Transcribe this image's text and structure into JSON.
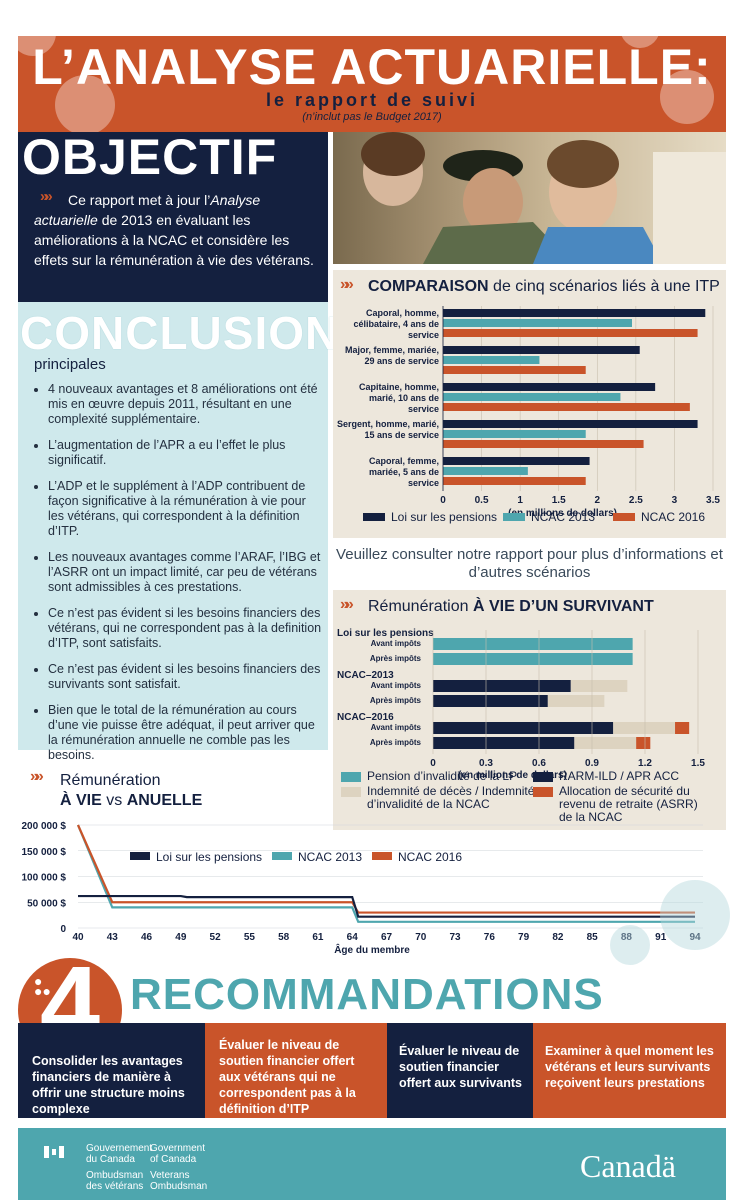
{
  "header": {
    "title": "L’ANALYSE ACTUARIELLE:",
    "subtitle": "le rapport de suivi",
    "note": "(n’inclut pas le Budget 2017)"
  },
  "objectif": {
    "heading": "OBJECTIF",
    "text_a": "Ce rapport met à jour l’",
    "text_em": "Analyse actuarielle",
    "text_b": " de 2013 en évaluant les améliorations à la NCAC et considère les effets sur la rémunération à vie des vétérans."
  },
  "conclusions": {
    "heading": "CONCLUSIONS",
    "subheading": "principales",
    "items": [
      "4 nouveaux avantages et 8 améliorations ont été mis en œuvre depuis 2011, résultant en une complexité supplémentaire.",
      "L’augmentation de l’APR a eu l’effet le plus significatif.",
      "L’ADP et le supplément à l’ADP contribuent de façon significative à la rémunération à vie pour les vétérans, qui correspondent à la définition d’ITP.",
      "Les nouveaux avantages comme l’ARAF, l’IBG et l’ASRR ont un impact limité, car peu de vétérans sont admissibles à ces prestations.",
      "Ce n’est pas évident si les besoins financiers des vétérans, qui ne correspondent pas à la definition d’ITP, sont satisfaits.",
      "Ce n’est pas évident si les besoins financiers des survivants sont satisfait.",
      "Bien que le total de la rémunération au cours d’une vie puisse être adéquat, il peut arriver que la rémunération annuelle ne comble pas les besoins."
    ]
  },
  "colors": {
    "navy": "#14203f",
    "teal": "#4ea6ae",
    "orange": "#c9542a",
    "beige": "#ddd3c0"
  },
  "comparison_title_bold": "COMPARAISON",
  "comparison_title_rest": " de cinq scénarios liés à une ITP",
  "consult_note": "Veuillez consulter notre rapport pour plus d’informations et d’autres scénarios",
  "survivor_title_a": "Rémunération ",
  "survivor_title_b": "À VIE D’UN SURVIVANT",
  "life_title_a": "Rémunération",
  "life_title_b": "À VIE",
  "life_title_c": " vs ",
  "life_title_d": "ANUELLE",
  "chart_data": [
    {
      "type": "bar",
      "orientation": "horizontal",
      "categories": [
        "Caporal, homme, célibataire, 4 ans de service",
        "Major, femme, mariée, 29 ans de service",
        "Capitaine, homme, marié, 10 ans de service",
        "Sergent, homme, marié, 15 ans de service",
        "Caporal, femme, mariée, 5 ans de service"
      ],
      "series": [
        {
          "name": "Loi sur les pensions",
          "color": "#14203f",
          "values": [
            3.4,
            2.55,
            2.75,
            3.3,
            1.9
          ]
        },
        {
          "name": "NCAC 2013",
          "color": "#4ea6ae",
          "values": [
            2.45,
            1.25,
            2.3,
            1.85,
            1.1
          ]
        },
        {
          "name": "NCAC 2016",
          "color": "#c9542a",
          "values": [
            3.3,
            1.85,
            3.2,
            2.6,
            1.85
          ]
        }
      ],
      "xlabel": "(en millions de dollars)",
      "xticks": [
        "0",
        "0.5",
        "1",
        "1.5",
        "2",
        "2.5",
        "3",
        "3.5"
      ],
      "xlim": [
        0,
        3.5
      ]
    },
    {
      "type": "bar",
      "orientation": "horizontal",
      "stacked": true,
      "groups": [
        {
          "label": "Loi sur les pensions",
          "rows": [
            {
              "label": "Avant impôts",
              "values": [
                1.13,
                0,
                0,
                0
              ]
            },
            {
              "label": "Après impôts",
              "values": [
                1.13,
                0,
                0,
                0
              ]
            }
          ]
        },
        {
          "label": "NCAC–2013",
          "rows": [
            {
              "label": "Avant impôts",
              "values": [
                0,
                0.78,
                0.32,
                0
              ]
            },
            {
              "label": "Après impôts",
              "values": [
                0,
                0.65,
                0.32,
                0
              ]
            }
          ]
        },
        {
          "label": "NCAC–2016",
          "rows": [
            {
              "label": "Avant impôts",
              "values": [
                0,
                1.02,
                0.35,
                0.08
              ]
            },
            {
              "label": "Après impôts",
              "values": [
                0,
                0.8,
                0.35,
                0.08
              ]
            }
          ]
        }
      ],
      "series": [
        {
          "name": "Pension d’invalidité de la LP",
          "color": "#4ea6ae"
        },
        {
          "name": "RARM-ILD / APR ACC",
          "color": "#14203f"
        },
        {
          "name": "Indemnité de décès / Indemnité d’invalidité de la NCAC",
          "color": "#ddd3c0"
        },
        {
          "name": "Allocation de sécurité du revenu de retraite (ASRR) de la NCAC",
          "color": "#c9542a"
        }
      ],
      "xlabel": "(en millions de dollars)",
      "xticks": [
        "0",
        "0.3",
        "0.6",
        "0.9",
        "1.2",
        "1.5"
      ],
      "xlim": [
        0,
        1.5
      ]
    },
    {
      "type": "line",
      "x": [
        40,
        43,
        46,
        49,
        52,
        55,
        58,
        61,
        64,
        67,
        70,
        73,
        76,
        79,
        82,
        85,
        88,
        91,
        94
      ],
      "series": [
        {
          "name": "Loi sur les pensions",
          "color": "#14203f",
          "values": [
            62000,
            62000,
            62000,
            62000,
            60000,
            60000,
            60000,
            60000,
            60000,
            22000,
            22000,
            22000,
            22000,
            22000,
            22000,
            22000,
            22000,
            22000,
            22000
          ]
        },
        {
          "name": "NCAC 2013",
          "color": "#4ea6ae",
          "values": [
            200000,
            40000,
            40000,
            40000,
            40000,
            40000,
            40000,
            40000,
            40000,
            12000,
            12000,
            12000,
            12000,
            12000,
            12000,
            12000,
            12000,
            12000,
            12000
          ]
        },
        {
          "name": "NCAC 2016",
          "color": "#c9542a",
          "values": [
            200000,
            50000,
            50000,
            50000,
            50000,
            50000,
            50000,
            50000,
            50000,
            30000,
            30000,
            30000,
            30000,
            30000,
            30000,
            30000,
            30000,
            30000,
            30000
          ]
        }
      ],
      "yticks": [
        "200 000 $",
        "150 000 $",
        "100 000 $",
        "50 000 $",
        "0"
      ],
      "ylim": [
        0,
        200000
      ],
      "xlabel": "Âge du membre"
    }
  ],
  "recommandations": {
    "number": "4",
    "heading": "RECOMMANDATIONS",
    "items": [
      "Consolider les avantages financiers de manière à offrir une structure moins complexe",
      "Évaluer le niveau de soutien financier offert aux vétérans qui ne correspondent pas à la définition d’ITP",
      "Évaluer le niveau de soutien financier offert aux survivants",
      "Examiner à quel moment les vétérans et leurs survivants reçoivent leurs prestations"
    ]
  },
  "footer": {
    "gov_fr_1": "Gouvernement",
    "gov_fr_2": "du Canada",
    "gov_en_1": "Government",
    "gov_en_2": "of Canada",
    "omb_fr_1": "Ombudsman",
    "omb_fr_2": "des vétérans",
    "omb_en_1": "Veterans",
    "omb_en_2": "Ombudsman",
    "wordmark": "Canadä"
  }
}
